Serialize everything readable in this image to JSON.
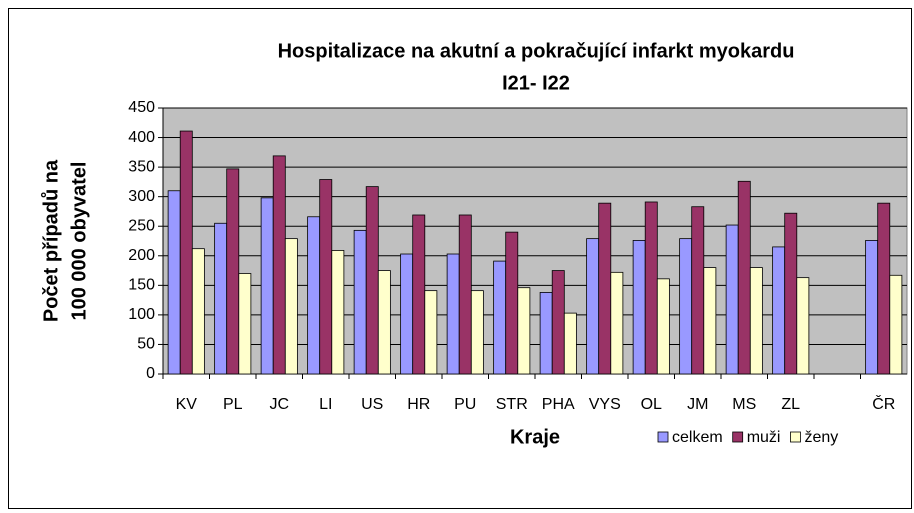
{
  "chart_data": {
    "type": "bar",
    "title": [
      "Hospitalizace na akutní a pokračující infarkt myokardu",
      "I21- I22"
    ],
    "ylabel": [
      "Počet případů na",
      "100 000 obyvatel"
    ],
    "xlabel": "Kraje",
    "categories": [
      "KV",
      "PL",
      "JC",
      "LI",
      "US",
      "HR",
      "PU",
      "STR",
      "PHA",
      "VYS",
      "OL",
      "JM",
      "MS",
      "ZL",
      null,
      "ČR"
    ],
    "series": [
      {
        "name": "celkem",
        "color": "#9999ff",
        "values": [
          310,
          255,
          298,
          266,
          243,
          203,
          203,
          191,
          138,
          229,
          226,
          229,
          252,
          215,
          null,
          226
        ]
      },
      {
        "name": "muži",
        "color": "#993366",
        "values": [
          411,
          347,
          369,
          329,
          317,
          269,
          269,
          240,
          175,
          289,
          291,
          283,
          326,
          272,
          null,
          289
        ]
      },
      {
        "name": "ženy",
        "color": "#ffffcc",
        "values": [
          212,
          170,
          229,
          209,
          175,
          141,
          141,
          146,
          103,
          172,
          161,
          180,
          180,
          163,
          null,
          167
        ]
      }
    ],
    "ylim": [
      0,
      450
    ],
    "yticks": [
      0,
      50,
      100,
      150,
      200,
      250,
      300,
      350,
      400,
      450
    ],
    "grid": true,
    "plot_background": "#c0c0c0",
    "legend": "bottom-right"
  }
}
